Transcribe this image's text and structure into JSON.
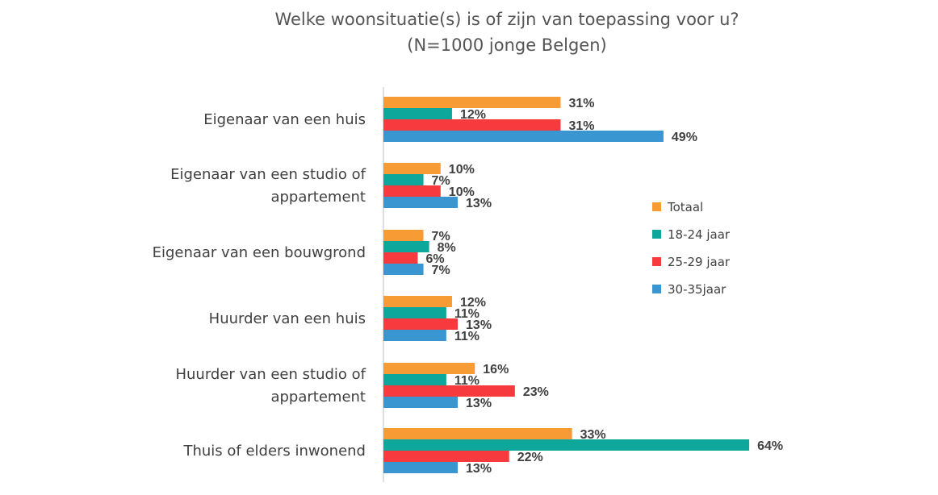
{
  "chart_data": {
    "type": "bar",
    "orientation": "horizontal",
    "title": "Welke woonsituatie(s) is of zijn van toepassing voor u?",
    "subtitle": "(N=1000 jonge Belgen)",
    "categories": [
      [
        "Eigenaar van een huis"
      ],
      [
        "Eigenaar van een studio of",
        "appartement"
      ],
      [
        "Eigenaar van een bouwgrond"
      ],
      [
        "Huurder van een huis"
      ],
      [
        "Huurder van een studio of",
        "appartement"
      ],
      [
        "Thuis of elders inwonend"
      ]
    ],
    "series": [
      {
        "name": "Totaal",
        "color": "#F79B35",
        "values": [
          31,
          10,
          7,
          12,
          16,
          33
        ]
      },
      {
        "name": "18-24 jaar",
        "color": "#0DA89B",
        "values": [
          12,
          7,
          8,
          11,
          11,
          64
        ]
      },
      {
        "name": "25-29 jaar",
        "color": "#F63A3D",
        "values": [
          31,
          10,
          6,
          13,
          23,
          22
        ]
      },
      {
        "name": "30-35jaar",
        "color": "#3A96D0",
        "values": [
          49,
          13,
          7,
          11,
          13,
          13
        ]
      }
    ],
    "value_suffix": "%",
    "xlim": [
      0,
      70
    ],
    "grid": false,
    "legend_position": "right"
  }
}
